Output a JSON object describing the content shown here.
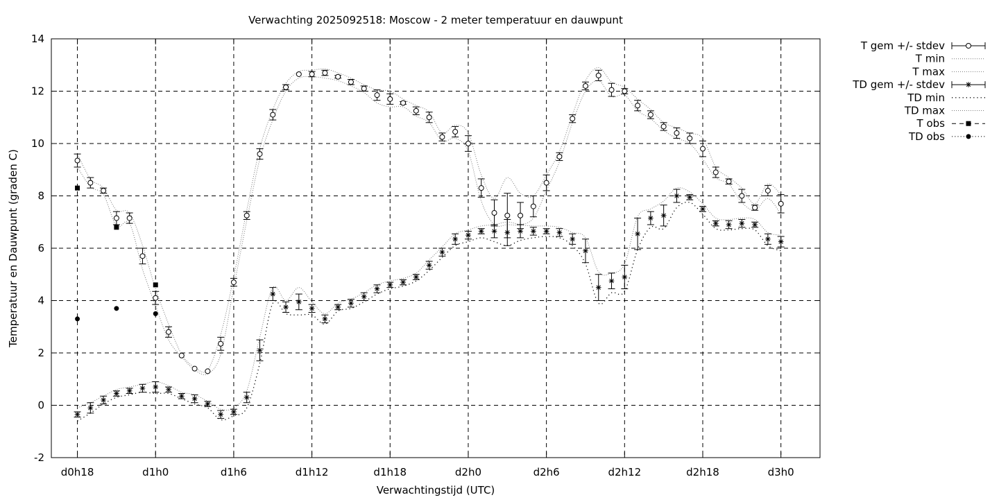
{
  "chart_data": {
    "type": "line",
    "title": "Verwachting 2025092518: Moscow - 2 meter temperatuur en dauwpunt",
    "xlabel": "Verwachtingstijd (UTC)",
    "ylabel": "Temperatuur en Dauwpunt (graden C)",
    "x_unit": "hours",
    "xlim": [
      -2,
      57
    ],
    "ylim": [
      -2,
      14
    ],
    "x_ticks": [
      {
        "value": 0,
        "label": "d0h18"
      },
      {
        "value": 6,
        "label": "d1h0"
      },
      {
        "value": 12,
        "label": "d1h6"
      },
      {
        "value": 18,
        "label": "d1h12"
      },
      {
        "value": 24,
        "label": "d1h18"
      },
      {
        "value": 30,
        "label": "d2h0"
      },
      {
        "value": 36,
        "label": "d2h6"
      },
      {
        "value": 42,
        "label": "d2h12"
      },
      {
        "value": 48,
        "label": "d2h18"
      },
      {
        "value": 54,
        "label": "d3h0"
      }
    ],
    "y_ticks": [
      -2,
      0,
      2,
      4,
      6,
      8,
      10,
      12,
      14
    ],
    "grid": true,
    "legend_position": "outside-top-right",
    "legend": [
      {
        "key": "t_mean",
        "label": "T gem +/- stdev"
      },
      {
        "key": "t_min",
        "label": "T min"
      },
      {
        "key": "t_max",
        "label": "T max"
      },
      {
        "key": "td_mean",
        "label": "TD gem +/- stdev"
      },
      {
        "key": "td_min",
        "label": "TD min"
      },
      {
        "key": "td_max",
        "label": "TD max"
      },
      {
        "key": "t_obs",
        "label": "T obs"
      },
      {
        "key": "td_obs",
        "label": "TD obs"
      }
    ],
    "series": [
      {
        "name": "T gem +/- stdev",
        "key": "t_mean",
        "x": [
          0,
          1,
          2,
          3,
          4,
          5,
          6,
          7,
          8,
          9,
          10,
          11,
          12,
          13,
          14,
          15,
          16,
          17,
          18,
          19,
          20,
          21,
          22,
          23,
          24,
          25,
          26,
          27,
          28,
          29,
          30,
          31,
          32,
          33,
          34,
          35,
          36,
          37,
          38,
          39,
          40,
          41,
          42,
          43,
          44,
          45,
          46,
          47,
          48,
          49,
          50,
          51,
          52,
          53,
          54
        ],
        "y": [
          9.35,
          8.5,
          8.2,
          7.15,
          7.15,
          5.7,
          4.1,
          2.8,
          1.9,
          1.4,
          1.3,
          2.35,
          4.7,
          7.25,
          9.6,
          11.1,
          12.15,
          12.65,
          12.65,
          12.7,
          12.55,
          12.35,
          12.1,
          11.85,
          11.7,
          11.55,
          11.25,
          11.0,
          10.25,
          10.45,
          10.0,
          8.3,
          7.35,
          7.25,
          7.25,
          7.6,
          8.5,
          9.5,
          10.95,
          12.2,
          12.6,
          12.05,
          12.0,
          11.45,
          11.1,
          10.65,
          10.4,
          10.2,
          9.8,
          8.9,
          8.55,
          8.0,
          7.55,
          8.2,
          7.7
        ],
        "err": [
          0.25,
          0.2,
          0.1,
          0.25,
          0.2,
          0.3,
          0.25,
          0.2,
          0,
          0,
          0,
          0.25,
          0.15,
          0.15,
          0.2,
          0.2,
          0.1,
          0,
          0.1,
          0.1,
          0.05,
          0.1,
          0.1,
          0.2,
          0.2,
          0.05,
          0.15,
          0.2,
          0.15,
          0.2,
          0.3,
          0.35,
          0.5,
          0.85,
          0.5,
          0.4,
          0.3,
          0.15,
          0.15,
          0.15,
          0.2,
          0.25,
          0.1,
          0.2,
          0.15,
          0.15,
          0.2,
          0.2,
          0.3,
          0.2,
          0.1,
          0.25,
          0.1,
          0.2,
          0.35
        ]
      },
      {
        "name": "T min",
        "key": "t_min",
        "x": [
          0,
          1,
          2,
          3,
          4,
          5,
          6,
          7,
          8,
          9,
          10,
          11,
          12,
          13,
          14,
          15,
          16,
          17,
          18,
          19,
          20,
          21,
          22,
          23,
          24,
          25,
          26,
          27,
          28,
          29,
          30,
          31,
          32,
          33,
          34,
          35,
          36,
          37,
          38,
          39,
          40,
          41,
          42,
          43,
          44,
          45,
          46,
          47,
          48,
          49,
          50,
          51,
          52,
          53,
          54
        ],
        "y": [
          9.1,
          8.35,
          8.05,
          6.85,
          6.95,
          5.2,
          3.8,
          2.5,
          1.85,
          1.35,
          1.2,
          1.95,
          4.5,
          7.05,
          9.4,
          10.9,
          12.0,
          12.5,
          12.55,
          12.5,
          12.4,
          12.2,
          11.95,
          11.55,
          11.4,
          11.4,
          11.05,
          10.8,
          10.1,
          10.2,
          9.7,
          7.8,
          6.9,
          6.9,
          6.9,
          7.15,
          8.2,
          9.3,
          10.8,
          12.0,
          12.4,
          11.8,
          11.85,
          11.25,
          10.95,
          10.5,
          10.2,
          10.0,
          9.4,
          8.7,
          8.45,
          7.75,
          7.45,
          7.9,
          7.3
        ]
      },
      {
        "name": "T max",
        "key": "t_max",
        "x": [
          0,
          1,
          2,
          3,
          4,
          5,
          6,
          7,
          8,
          9,
          10,
          11,
          12,
          13,
          14,
          15,
          16,
          17,
          18,
          19,
          20,
          21,
          22,
          23,
          24,
          25,
          26,
          27,
          28,
          29,
          30,
          31,
          32,
          33,
          34,
          35,
          36,
          37,
          38,
          39,
          40,
          41,
          42,
          43,
          44,
          45,
          46,
          47,
          48,
          49,
          50,
          51,
          52,
          53,
          54
        ],
        "y": [
          9.6,
          8.65,
          8.3,
          7.45,
          7.35,
          6.1,
          4.45,
          3.1,
          1.95,
          1.45,
          1.35,
          2.7,
          4.9,
          7.45,
          9.8,
          11.3,
          12.3,
          12.75,
          12.8,
          12.85,
          12.7,
          12.5,
          12.25,
          12.05,
          12.0,
          11.7,
          11.45,
          11.2,
          10.4,
          10.7,
          10.4,
          8.8,
          7.9,
          8.7,
          8.1,
          8.0,
          8.8,
          9.7,
          11.1,
          12.4,
          12.9,
          12.35,
          12.15,
          11.7,
          11.3,
          10.8,
          10.6,
          10.4,
          10.2,
          9.1,
          8.7,
          8.3,
          7.7,
          8.45,
          8.05
        ]
      },
      {
        "name": "TD gem +/- stdev",
        "key": "td_mean",
        "x": [
          0,
          1,
          2,
          3,
          4,
          5,
          6,
          7,
          8,
          9,
          10,
          11,
          12,
          13,
          14,
          15,
          16,
          17,
          18,
          19,
          20,
          21,
          22,
          23,
          24,
          25,
          26,
          27,
          28,
          29,
          30,
          31,
          32,
          33,
          34,
          35,
          36,
          37,
          38,
          39,
          40,
          41,
          42,
          43,
          44,
          45,
          46,
          47,
          48,
          49,
          50,
          51,
          52,
          53,
          54
        ],
        "y": [
          -0.35,
          -0.1,
          0.2,
          0.45,
          0.55,
          0.65,
          0.7,
          0.6,
          0.35,
          0.25,
          0.05,
          -0.35,
          -0.25,
          0.3,
          2.1,
          4.25,
          3.75,
          3.95,
          3.7,
          3.3,
          3.75,
          3.9,
          4.15,
          4.45,
          4.6,
          4.7,
          4.9,
          5.35,
          5.85,
          6.35,
          6.5,
          6.65,
          6.65,
          6.6,
          6.65,
          6.65,
          6.65,
          6.6,
          6.35,
          5.9,
          4.5,
          4.75,
          4.9,
          6.55,
          7.15,
          7.25,
          8.0,
          7.95,
          7.5,
          6.95,
          6.9,
          6.95,
          6.9,
          6.35,
          6.25
        ],
        "err": [
          0.1,
          0.2,
          0.15,
          0.1,
          0.1,
          0.15,
          0.2,
          0.1,
          0.1,
          0.15,
          0.1,
          0.15,
          0.1,
          0.2,
          0.4,
          0.25,
          0.2,
          0.3,
          0.15,
          0.15,
          0.1,
          0.15,
          0.15,
          0.15,
          0.1,
          0.1,
          0.1,
          0.15,
          0.15,
          0.2,
          0.15,
          0.1,
          0.25,
          0.5,
          0.25,
          0.15,
          0.1,
          0.15,
          0.2,
          0.45,
          0.5,
          0.3,
          0.45,
          0.6,
          0.25,
          0.4,
          0.25,
          0.1,
          0.1,
          0.1,
          0.15,
          0.15,
          0.1,
          0.2,
          0.2
        ]
      },
      {
        "name": "TD min",
        "key": "td_min",
        "x": [
          0,
          1,
          2,
          3,
          4,
          5,
          6,
          7,
          8,
          9,
          10,
          11,
          12,
          13,
          14,
          15,
          16,
          17,
          18,
          19,
          20,
          21,
          22,
          23,
          24,
          25,
          26,
          27,
          28,
          29,
          30,
          31,
          32,
          33,
          34,
          35,
          36,
          37,
          38,
          39,
          40,
          41,
          42,
          43,
          44,
          45,
          46,
          47,
          48,
          49,
          50,
          51,
          52,
          53,
          54
        ],
        "y": [
          -0.6,
          -0.3,
          0.05,
          0.3,
          0.4,
          0.5,
          0.45,
          0.45,
          0.25,
          0.05,
          -0.1,
          -0.55,
          -0.4,
          -0.1,
          1.6,
          3.9,
          3.5,
          3.45,
          3.45,
          3.1,
          3.6,
          3.7,
          3.95,
          4.25,
          4.45,
          4.55,
          4.75,
          5.15,
          5.65,
          6.1,
          6.25,
          6.4,
          6.25,
          6.1,
          6.3,
          6.4,
          6.45,
          6.4,
          6.1,
          5.4,
          3.9,
          4.3,
          4.35,
          5.95,
          6.8,
          6.75,
          7.55,
          7.75,
          7.3,
          6.75,
          6.7,
          6.75,
          6.7,
          6.1,
          5.9
        ]
      },
      {
        "name": "TD max",
        "key": "td_max",
        "x": [
          0,
          1,
          2,
          3,
          4,
          5,
          6,
          7,
          8,
          9,
          10,
          11,
          12,
          13,
          14,
          15,
          16,
          17,
          18,
          19,
          20,
          21,
          22,
          23,
          24,
          25,
          26,
          27,
          28,
          29,
          30,
          31,
          32,
          33,
          34,
          35,
          36,
          37,
          38,
          39,
          40,
          41,
          42,
          43,
          44,
          45,
          46,
          47,
          48,
          49,
          50,
          51,
          52,
          53,
          54
        ],
        "y": [
          -0.1,
          0.1,
          0.35,
          0.6,
          0.7,
          0.8,
          0.9,
          0.75,
          0.5,
          0.4,
          0.15,
          -0.15,
          -0.1,
          0.55,
          2.6,
          4.5,
          4.0,
          4.5,
          3.95,
          3.5,
          3.9,
          4.05,
          4.3,
          4.6,
          4.75,
          4.85,
          5.05,
          5.55,
          6.05,
          6.55,
          6.7,
          6.85,
          6.9,
          7.0,
          6.9,
          6.85,
          6.85,
          6.8,
          6.6,
          6.4,
          5.1,
          5.05,
          5.4,
          7.2,
          7.5,
          7.8,
          8.3,
          8.15,
          7.7,
          7.15,
          7.1,
          7.15,
          7.1,
          6.6,
          6.5
        ]
      },
      {
        "name": "T obs",
        "key": "t_obs",
        "x": [
          0,
          3,
          6
        ],
        "y": [
          8.3,
          6.8,
          4.6
        ]
      },
      {
        "name": "TD obs",
        "key": "td_obs",
        "x": [
          0,
          3,
          6
        ],
        "y": [
          3.3,
          3.7,
          3.5
        ]
      }
    ]
  }
}
